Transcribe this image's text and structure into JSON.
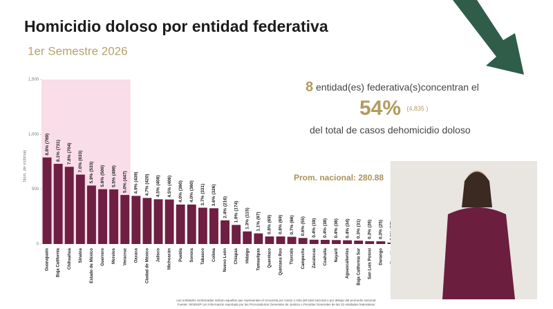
{
  "chart_data": {
    "type": "bar",
    "title": "Homicidio doloso por entidad federativa",
    "subtitle": "1er Semestre 2026",
    "y_label": "Núm. de víctimas",
    "categories": [
      "Guanajuato",
      "Baja California",
      "Chihuahua",
      "Sinaloa",
      "Estado de México",
      "Guerrero",
      "Morelos",
      "Veracruz",
      "Oaxaca",
      "Ciudad de México",
      "Jalisco",
      "Michoacán",
      "Puebla",
      "Sonora",
      "Tabasco",
      "Colima",
      "Nuevo León",
      "Chiapas",
      "Hidalgo",
      "Tamaulipas",
      "Querétaro",
      "Quintana Roo",
      "Tlaxcala",
      "Campeche",
      "Zacatecas",
      "Coahuila",
      "Nayarit",
      "Aguascalientes",
      "Baja California Sur",
      "San Luis Potosí",
      "Durango",
      "Yucatán"
    ],
    "values": [
      789,
      731,
      704,
      633,
      533,
      500,
      498,
      447,
      439,
      420,
      408,
      406,
      360,
      360,
      331,
      326,
      216,
      174,
      115,
      97,
      69,
      69,
      66,
      55,
      39,
      38,
      36,
      34,
      31,
      26,
      25,
      13
    ],
    "value_labels": [
      "8.8% (789)",
      "8.1% (731)",
      "7.8% (704)",
      "7.0% (633)",
      "5.9% (533)",
      "5.6% (500)",
      "5.5% (498)",
      "5.0% (447)",
      "4.9% (439)",
      "4.7% (420)",
      "4.5% (408)",
      "4.5% (406)",
      "4.0% (360)",
      "4.0% (360)",
      "3.7% (331)",
      "3.6% (326)",
      "2.4% (216)",
      "1.9% (174)",
      "1.3% (115)",
      "1.1% (97)",
      "0.8% (69)",
      "0.8% (69)",
      "0.7% (66)",
      "0.6% (55)",
      "0.4% (39)",
      "0.4% (38)",
      "0.4% (36)",
      "0.4% (34)",
      "0.3% (31)",
      "0.3% (26)",
      "0.3% (25)",
      "0.1% (13)"
    ],
    "color": "#6e1f42",
    "highlight_color": "#f9dde8",
    "ylim": [
      0,
      1500
    ],
    "yticks": [
      0,
      500,
      {
        "value": 1000,
        "label": "1,000"
      },
      {
        "value": 1500,
        "label": "1,500"
      }
    ],
    "summary": {
      "count": 8,
      "text1": "entidad(es) federativa(s)concentran el",
      "percent": {
        "value": 54,
        "label": "54%"
      },
      "total": {
        "value": 4835,
        "label": "(4,835 )"
      },
      "text2": "del total de casos de",
      "text3": "homicidio doloso"
    },
    "average_label": "Prom. nacional:",
    "average": 280.88,
    "notes": [
      "Las entidades sombreadas indican aquellas que representan el cincuenta por ciento o más del total nacional o por debajo del promedio nacional.",
      "Fuente: SESNSP con información reportada por las Procuradurías Generales de Justicia o Fiscalías Generales de las 32 entidades federativas."
    ]
  }
}
